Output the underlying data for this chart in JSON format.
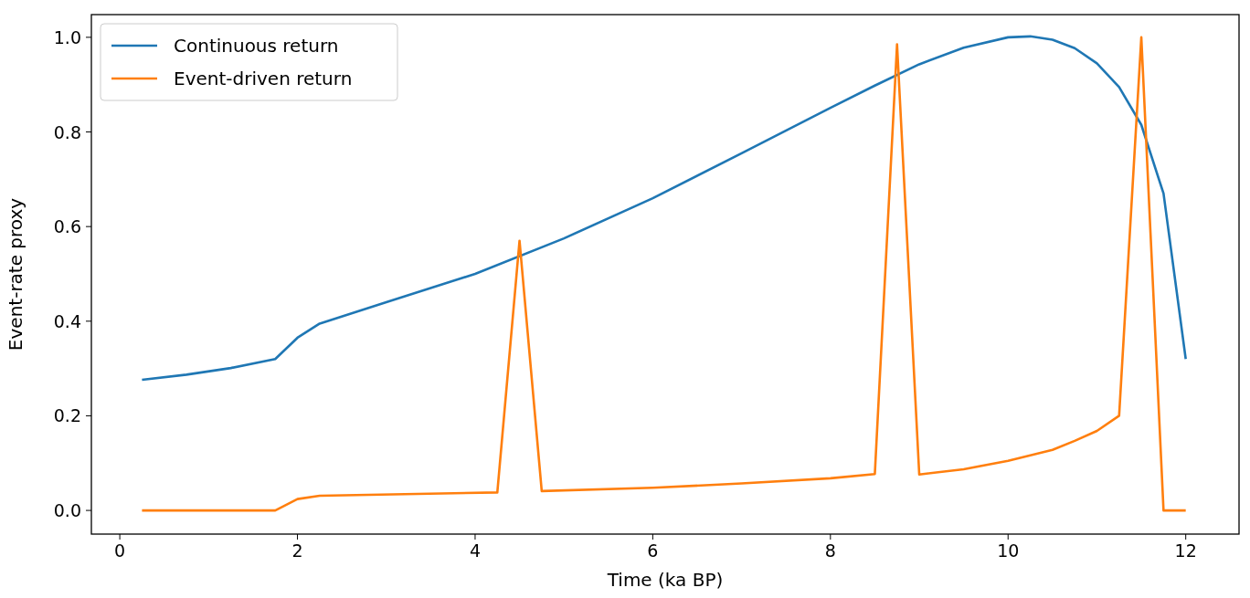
{
  "chart_data": {
    "type": "line",
    "xlabel": "Time (ka BP)",
    "ylabel": "Event-rate proxy",
    "xlim": [
      -0.32,
      12.6
    ],
    "ylim": [
      -0.05,
      1.048
    ],
    "xticks": [
      0,
      2,
      4,
      6,
      8,
      10,
      12
    ],
    "yticks": [
      {
        "value": 0,
        "label": "0.0"
      },
      {
        "value": 0.2,
        "label": "0.2"
      },
      {
        "value": 0.4,
        "label": "0.4"
      },
      {
        "value": 0.6,
        "label": "0.6"
      },
      {
        "value": 0.8,
        "label": "0.8"
      },
      {
        "value": 1,
        "label": "1.0"
      }
    ],
    "legend": "top left",
    "grid": false,
    "series": [
      {
        "name": "Continuous return",
        "color": "#1f77b4",
        "x": [
          0.25,
          0.75,
          1.25,
          1.75,
          2,
          2.25,
          3,
          4,
          5,
          6,
          7,
          8,
          8.5,
          9,
          9.5,
          10,
          10.25,
          10.5,
          10.75,
          11,
          11.25,
          11.5,
          11.75,
          12
        ],
        "values": [
          0.276,
          0.287,
          0.301,
          0.32,
          0.365,
          0.395,
          0.44,
          0.5,
          0.575,
          0.66,
          0.755,
          0.851,
          0.898,
          0.943,
          0.978,
          1.0,
          1.002,
          0.995,
          0.977,
          0.945,
          0.895,
          0.815,
          0.67,
          0.32
        ]
      },
      {
        "name": "Event-driven return",
        "color": "#ff7f0e",
        "x": [
          0.25,
          1.75,
          2,
          2.25,
          4.25,
          4.5,
          4.75,
          6,
          7,
          8,
          8.5,
          8.75,
          9,
          9.5,
          10,
          10.5,
          10.75,
          11,
          11.25,
          11.5,
          11.75,
          12
        ],
        "values": [
          0,
          0,
          0.024,
          0.031,
          0.038,
          0.57,
          0.041,
          0.048,
          0.057,
          0.068,
          0.077,
          0.985,
          0.076,
          0.087,
          0.105,
          0.128,
          0.147,
          0.168,
          0.2,
          1.0,
          0,
          0
        ]
      }
    ]
  }
}
